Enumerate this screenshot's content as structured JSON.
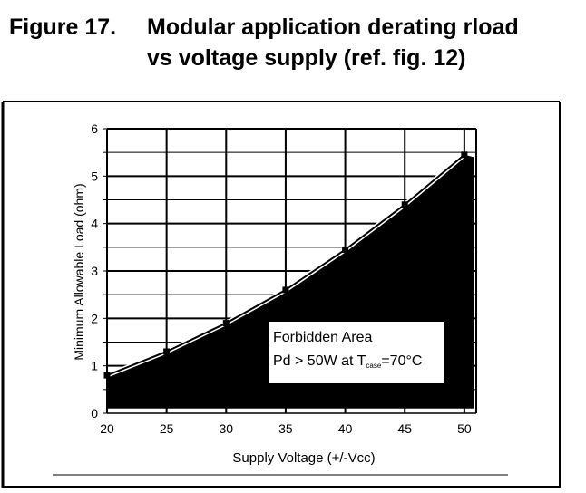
{
  "figure": {
    "label": "Figure 17.",
    "title_line1": "Modular application derating rload",
    "title_line2": "vs voltage supply (ref. fig. 12)"
  },
  "chart_data": {
    "type": "area",
    "xlabel": "Supply Voltage (+/-Vcc)",
    "ylabel": "Minimum Allowable Load (ohm)",
    "xlim": [
      20,
      51
    ],
    "ylim": [
      0,
      6
    ],
    "x_ticks": [
      20,
      25,
      30,
      35,
      40,
      45,
      50
    ],
    "y_ticks": [
      0,
      1,
      2,
      3,
      4,
      5,
      6
    ],
    "grid": true,
    "series": [
      {
        "x": [
          20,
          25,
          30,
          35,
          40,
          45,
          50
        ],
        "y": [
          0.8,
          1.3,
          1.9,
          2.6,
          3.45,
          4.4,
          5.45
        ]
      }
    ],
    "annotation": {
      "line1": "Forbidden Area",
      "line2_prefix": "Pd > 50W at T",
      "line2_sub": "case",
      "line2_suffix": "=70°C"
    }
  }
}
